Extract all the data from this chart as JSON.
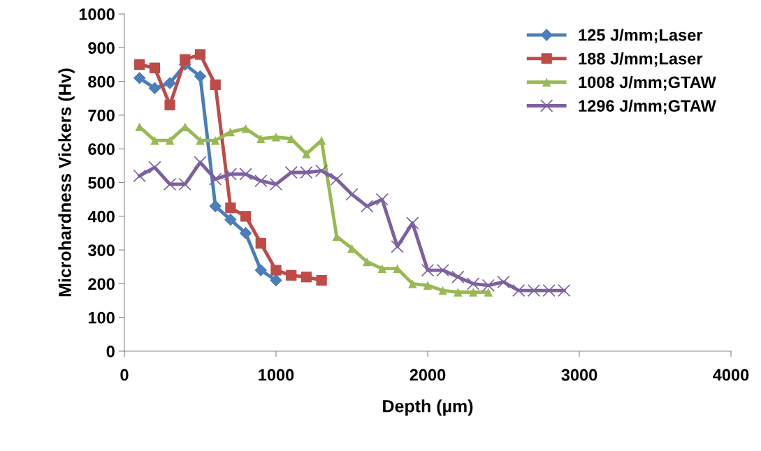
{
  "chart_data": {
    "type": "line",
    "xlabel": "Depth (µm)",
    "ylabel": "Microhardness Vickers (Hv)",
    "xlim": [
      0,
      4000
    ],
    "xticks": [
      0,
      1000,
      2000,
      3000,
      4000
    ],
    "ylim": [
      0,
      1000
    ],
    "yticks": [
      0,
      100,
      200,
      300,
      400,
      500,
      600,
      700,
      800,
      900,
      1000
    ],
    "grid": false,
    "legend": "top right",
    "series": [
      {
        "name": "125 J/mm;Laser",
        "color": "#4a7ebb",
        "marker": "diamond",
        "x": [
          100,
          200,
          300,
          400,
          500,
          600,
          700,
          800,
          900,
          1000
        ],
        "values": [
          810,
          780,
          795,
          850,
          815,
          430,
          390,
          350,
          240,
          210
        ]
      },
      {
        "name": "188 J/mm;Laser",
        "color": "#be4b48",
        "marker": "square",
        "x": [
          100,
          200,
          300,
          400,
          500,
          600,
          700,
          800,
          900,
          1000,
          1100,
          1200,
          1300
        ],
        "values": [
          850,
          840,
          730,
          865,
          880,
          790,
          425,
          400,
          320,
          240,
          225,
          220,
          210
        ]
      },
      {
        "name": "1008 J/mm;GTAW",
        "color": "#98b954",
        "marker": "triangle",
        "x": [
          100,
          200,
          300,
          400,
          500,
          600,
          700,
          800,
          900,
          1000,
          1100,
          1200,
          1300,
          1400,
          1500,
          1600,
          1700,
          1800,
          1900,
          2000,
          2100,
          2200,
          2300,
          2400
        ],
        "values": [
          665,
          625,
          625,
          665,
          625,
          625,
          650,
          660,
          630,
          635,
          630,
          585,
          625,
          340,
          305,
          265,
          245,
          245,
          200,
          195,
          180,
          175,
          175,
          175
        ]
      },
      {
        "name": "1296 J/mm;GTAW",
        "color": "#7d60a0",
        "marker": "cross",
        "x": [
          100,
          200,
          300,
          400,
          500,
          600,
          700,
          800,
          900,
          1000,
          1100,
          1200,
          1300,
          1400,
          1500,
          1600,
          1700,
          1800,
          1900,
          2000,
          2100,
          2200,
          2300,
          2400,
          2500,
          2600,
          2700,
          2800,
          2900
        ],
        "values": [
          520,
          545,
          495,
          495,
          560,
          510,
          525,
          525,
          505,
          495,
          530,
          530,
          535,
          510,
          465,
          430,
          450,
          310,
          380,
          240,
          240,
          220,
          200,
          195,
          205,
          180,
          180,
          180,
          180
        ]
      }
    ]
  }
}
